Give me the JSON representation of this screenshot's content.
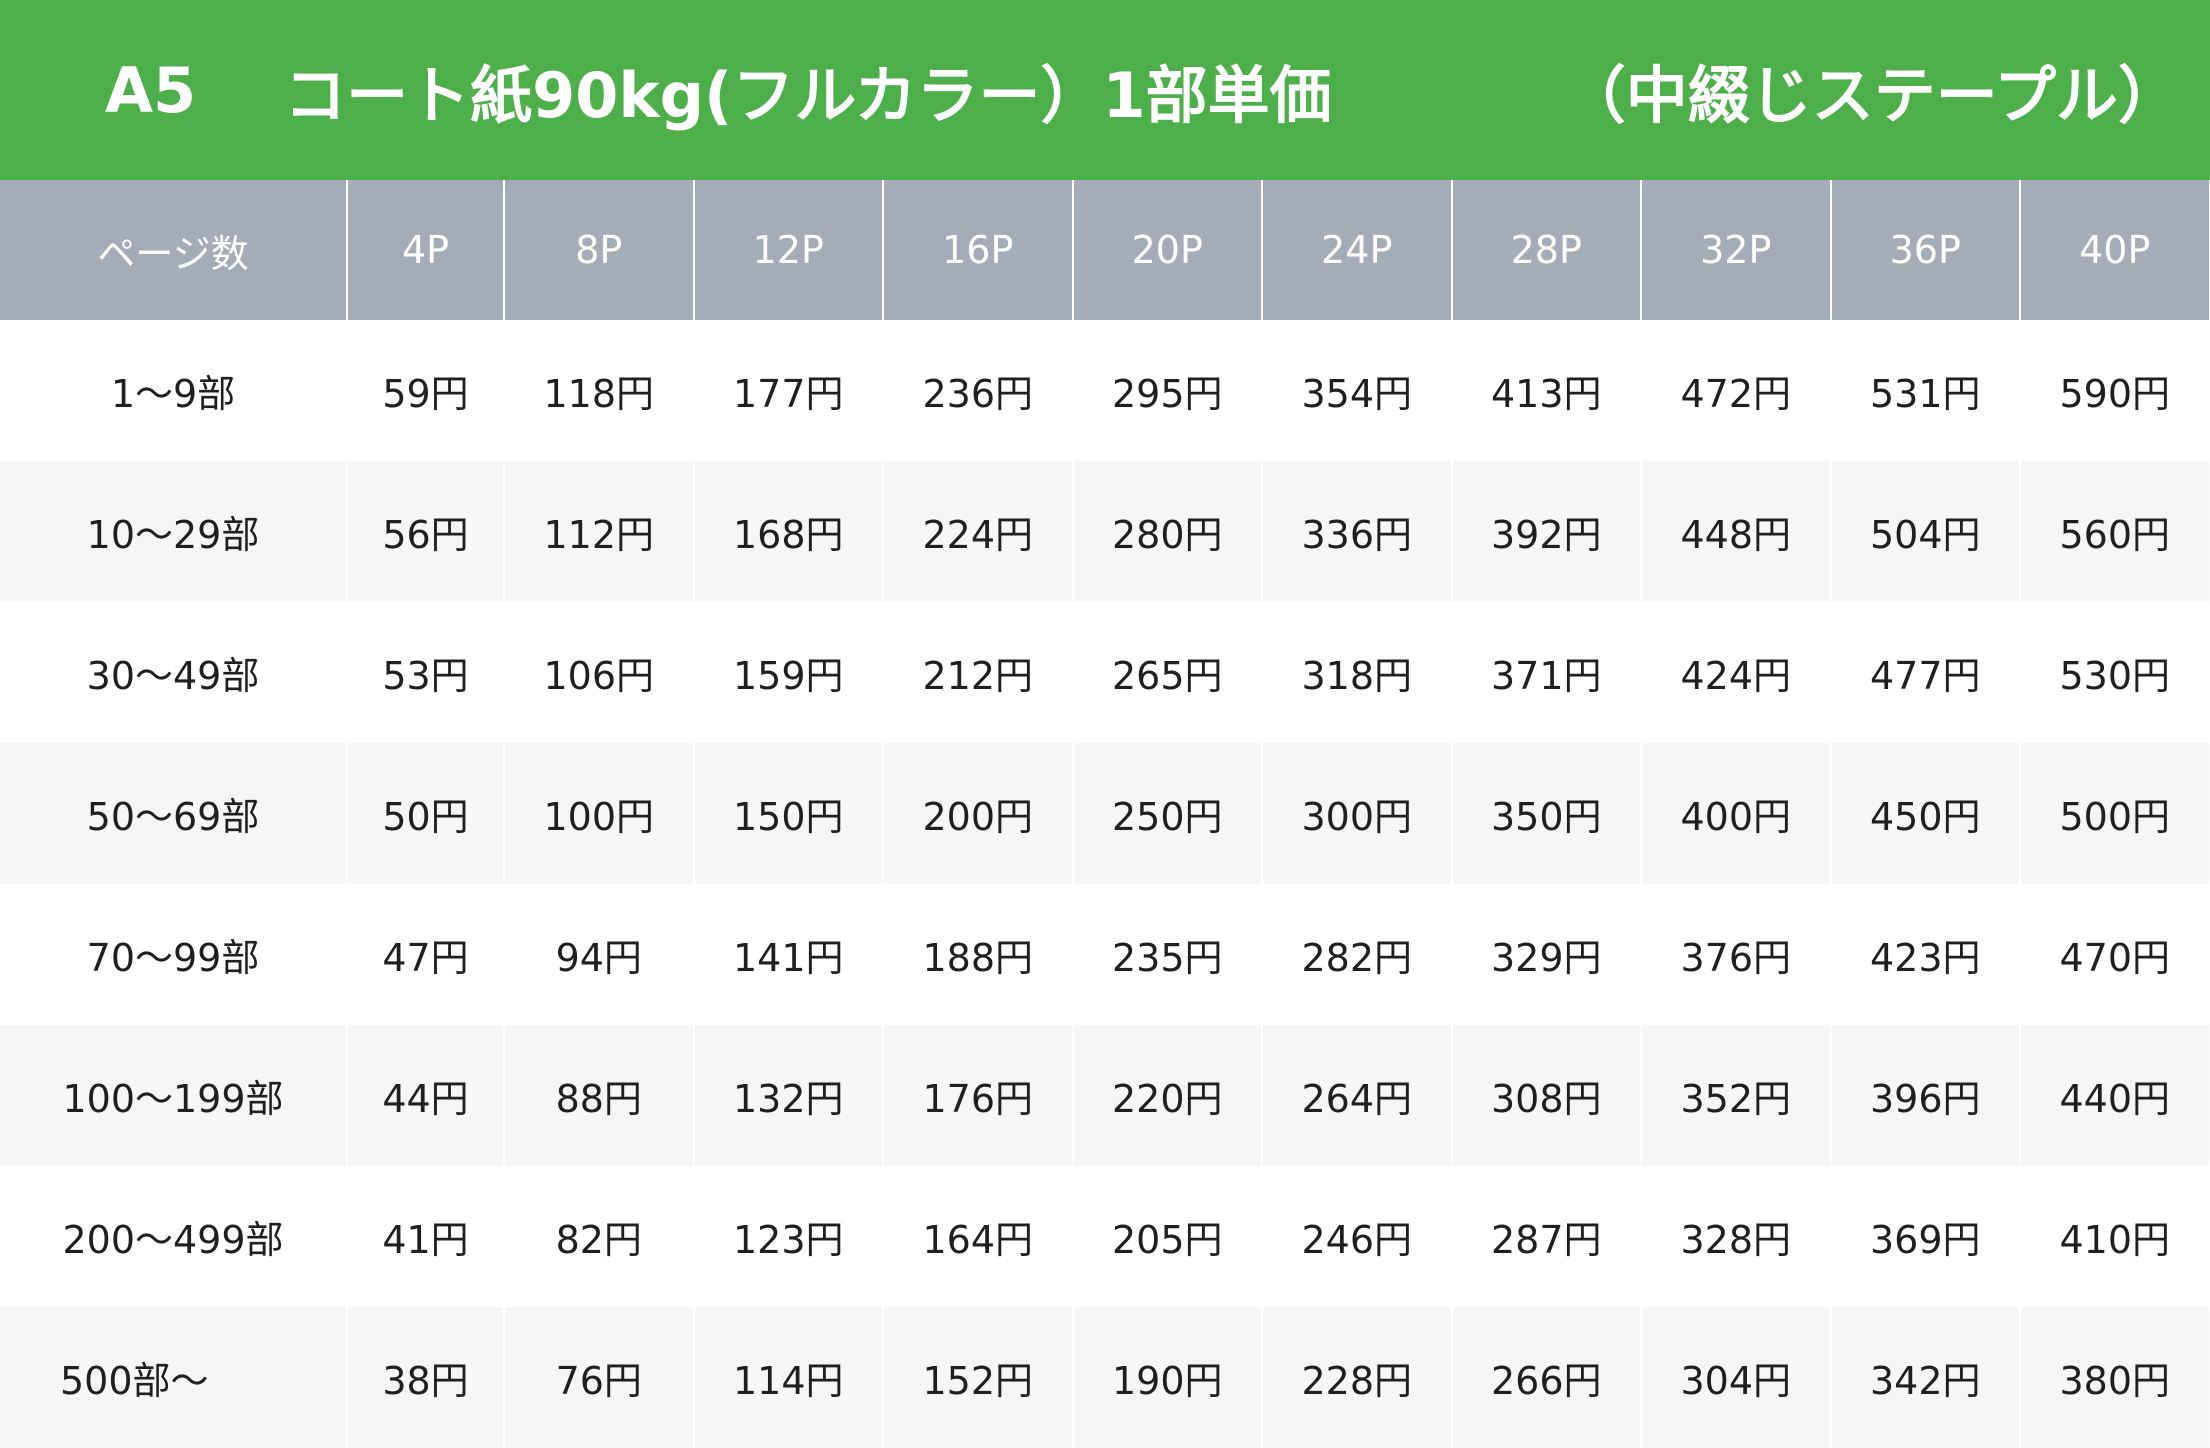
{
  "header": {
    "size": "A5",
    "title": "コート紙90kg(フルカラー）1部単価",
    "binding": "（中綴じステープル）"
  },
  "colors": {
    "banner_green": "#4caf4a",
    "header_gray": "#a4adb7",
    "row_alt": "#f5f6f8"
  },
  "table": {
    "columns": [
      "ページ数",
      "4P",
      "8P",
      "12P",
      "16P",
      "20P",
      "24P",
      "28P",
      "32P",
      "36P",
      "40P"
    ],
    "rows": [
      {
        "qty": "1～9部",
        "prices": [
          "59円",
          "118円",
          "177円",
          "236円",
          "295円",
          "354円",
          "413円",
          "472円",
          "531円",
          "590円"
        ]
      },
      {
        "qty": "10～29部",
        "prices": [
          "56円",
          "112円",
          "168円",
          "224円",
          "280円",
          "336円",
          "392円",
          "448円",
          "504円",
          "560円"
        ]
      },
      {
        "qty": "30～49部",
        "prices": [
          "53円",
          "106円",
          "159円",
          "212円",
          "265円",
          "318円",
          "371円",
          "424円",
          "477円",
          "530円"
        ]
      },
      {
        "qty": "50～69部",
        "prices": [
          "50円",
          "100円",
          "150円",
          "200円",
          "250円",
          "300円",
          "350円",
          "400円",
          "450円",
          "500円"
        ]
      },
      {
        "qty": "70～99部",
        "prices": [
          "47円",
          "94円",
          "141円",
          "188円",
          "235円",
          "282円",
          "329円",
          "376円",
          "423円",
          "470円"
        ]
      },
      {
        "qty": "100～199部",
        "prices": [
          "44円",
          "88円",
          "132円",
          "176円",
          "220円",
          "264円",
          "308円",
          "352円",
          "396円",
          "440円"
        ]
      },
      {
        "qty": "200～499部",
        "prices": [
          "41円",
          "82円",
          "123円",
          "164円",
          "205円",
          "246円",
          "287円",
          "328円",
          "369円",
          "410円"
        ]
      },
      {
        "qty": "500部～",
        "prices": [
          "38円",
          "76円",
          "114円",
          "152円",
          "190円",
          "228円",
          "266円",
          "304円",
          "342円",
          "380円"
        ]
      }
    ]
  }
}
